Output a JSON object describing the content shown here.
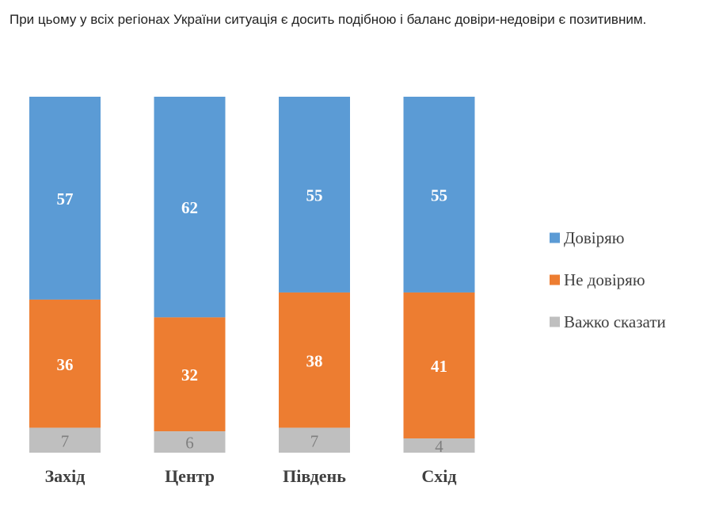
{
  "intro_text": "При цьому у всіх регіонах України ситуація є досить подібною і баланс довіри-недовіри є позитивним.",
  "chart_data": {
    "type": "bar",
    "stacked": true,
    "normalized_to_100": true,
    "categories": [
      "Захід",
      "Центр",
      "Південь",
      "Схід"
    ],
    "series": [
      {
        "name": "Довіряю",
        "values": [
          57,
          62,
          55,
          55
        ],
        "color": "#5b9bd5"
      },
      {
        "name": "Не довіряю",
        "values": [
          36,
          32,
          38,
          41
        ],
        "color": "#ed7d31"
      },
      {
        "name": "Важко сказати",
        "values": [
          7,
          6,
          7,
          4
        ],
        "color": "#bfbfbf"
      }
    ],
    "legend_position": "right",
    "grid": false,
    "axes_visible": false
  }
}
